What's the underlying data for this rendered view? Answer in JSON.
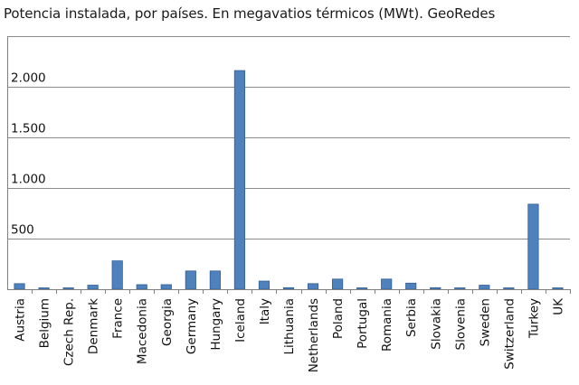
{
  "title": "Potencia instalada, por países. En megavatios térmicos (MWt). GeoRedes",
  "colors": {
    "bar": "#4f81bd",
    "bar_edge": "#2f5f96",
    "grid": "#8c8c8c",
    "axis": "#7f7f7f"
  },
  "chart_data": {
    "type": "bar",
    "title": "Potencia instalada, por países. En megavatios térmicos (MWt). GeoRedes",
    "xlabel": "",
    "ylabel": "",
    "ylim": [
      0,
      2500
    ],
    "yticks": [
      0,
      500,
      1000,
      1500,
      2000
    ],
    "ytick_labels": [
      "",
      "500",
      "1.000",
      "1.500",
      "2.000"
    ],
    "grid": true,
    "legend": "none",
    "categories": [
      "Austria",
      "Belgium",
      "Czech Rep.",
      "Denmark",
      "France",
      "Macedonia",
      "Georgia",
      "Germany",
      "Hungary",
      "Iceland",
      "Italy",
      "Lithuania",
      "Netherlands",
      "Poland",
      "Portugal",
      "Romania",
      "Serbia",
      "Slovakia",
      "Slovenia",
      "Sweden",
      "Switzerland",
      "Turkey",
      "UK"
    ],
    "values": [
      55,
      10,
      5,
      40,
      280,
      45,
      45,
      180,
      180,
      2160,
      80,
      15,
      55,
      100,
      5,
      100,
      60,
      15,
      5,
      40,
      5,
      840,
      5
    ]
  }
}
